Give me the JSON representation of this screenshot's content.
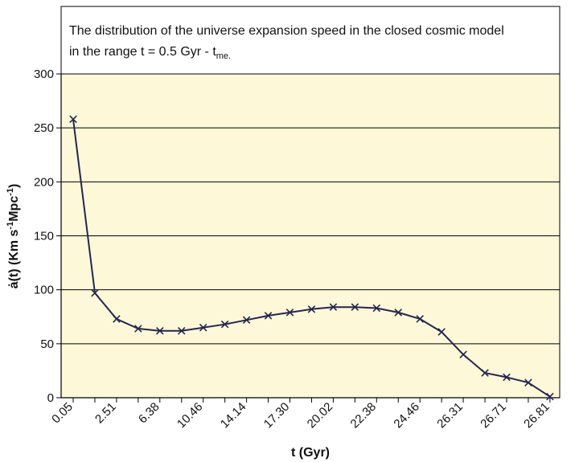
{
  "chart_data": {
    "type": "line",
    "title_line1": "The distribution of the universe expansion speed in the  closed cosmic model",
    "title_line2_main": "in the range t = 0.5 Gyr - t",
    "title_line2_sub": "me.",
    "xlabel": "t (Gyr)",
    "ylabel_parts": {
      "a": "ȧ(t) (Km s",
      "sup1": "-1",
      "b": "Mpc",
      "sup2": "-1",
      "c": ")"
    },
    "ylim": [
      0,
      300
    ],
    "yticks": [
      0,
      50,
      100,
      150,
      200,
      250,
      300
    ],
    "xtick_labels": [
      "0.05",
      "2.51",
      "6.38",
      "10.46",
      "14.14",
      "17.30",
      "20.02",
      "22.38",
      "24.46",
      "26.31",
      "26.71",
      "26.81"
    ],
    "grid": true,
    "series": [
      {
        "values": [
          258,
          97,
          73,
          64,
          62,
          62,
          65,
          68,
          72,
          76,
          79,
          82,
          84,
          84,
          83,
          79,
          73,
          61,
          40,
          23,
          19,
          14,
          1
        ]
      }
    ],
    "colors": {
      "line": "#23264f",
      "plot_background": "#fdf8d8",
      "grid": "#000000"
    }
  }
}
